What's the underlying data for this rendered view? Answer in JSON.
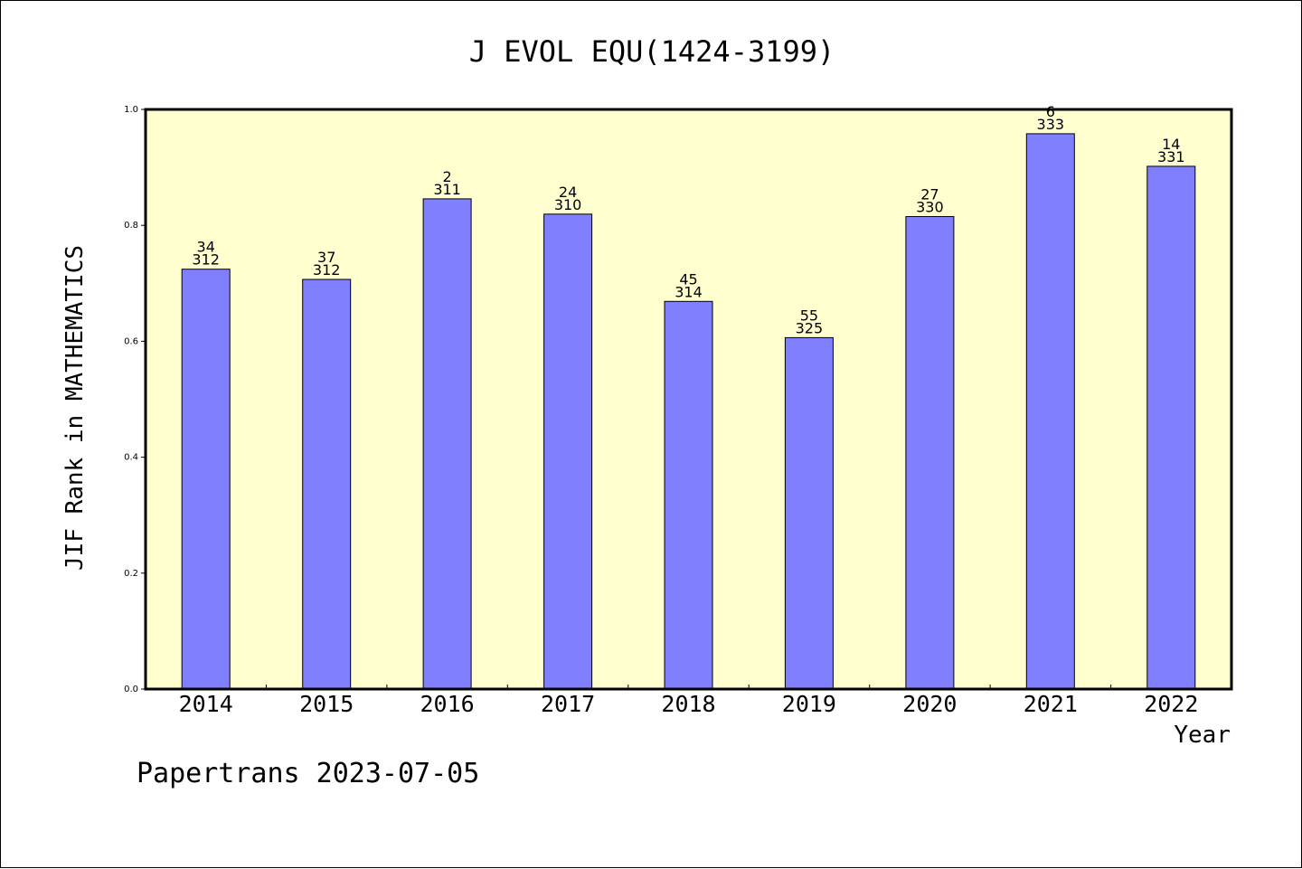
{
  "chart_data": {
    "type": "bar",
    "title": "J EVOL EQU(1424-3199)",
    "xlabel": "Year",
    "ylabel": "JIF Rank in MATHEMATICS",
    "ylim": [
      0,
      1.0
    ],
    "yticks": [
      "0.0",
      "0.2",
      "0.4",
      "0.6",
      "0.8",
      "1.0"
    ],
    "ytick_values": [
      0.0,
      0.2,
      0.4,
      0.6,
      0.8,
      1.0
    ],
    "categories": [
      "2014",
      "2015",
      "2016",
      "2017",
      "2018",
      "2019",
      "2020",
      "2021",
      "2022"
    ],
    "values": [
      0.7244,
      0.7067,
      0.8457,
      0.8194,
      0.6688,
      0.6062,
      0.8152,
      0.958,
      0.9018
    ],
    "rank": [
      "34",
      "37",
      "2",
      "24",
      "45",
      "55",
      "27",
      "6",
      "14"
    ],
    "total": [
      "312",
      "312",
      "311",
      "310",
      "314",
      "325",
      "330",
      "333",
      "331"
    ],
    "grid": false,
    "bar_color": "#8080ff",
    "plot_background": "#ffffd0"
  },
  "footer": {
    "text": "Papertrans 2023-07-05"
  }
}
